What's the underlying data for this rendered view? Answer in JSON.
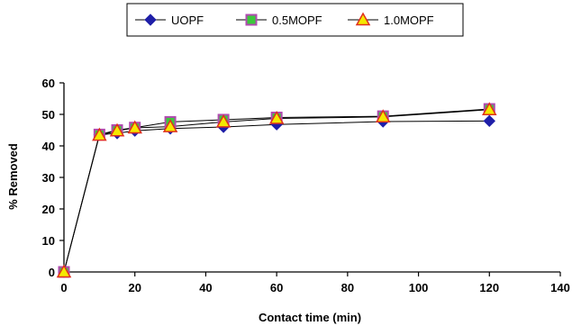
{
  "chart_data": {
    "type": "line",
    "xlabel": "Contact time (min)",
    "ylabel": "% Removed",
    "xlim": [
      0,
      140
    ],
    "ylim": [
      0,
      60
    ],
    "xticks": [
      0,
      20,
      40,
      60,
      80,
      100,
      120,
      140
    ],
    "yticks": [
      0,
      10,
      20,
      30,
      40,
      50,
      60
    ],
    "grid": false,
    "legend_position": "top-center",
    "series": [
      {
        "name": "UOPF",
        "marker": "diamond",
        "color": "#1f1fa8",
        "points": [
          [
            0,
            0
          ],
          [
            10,
            43.5
          ],
          [
            15,
            44
          ],
          [
            20,
            44.8
          ],
          [
            30,
            45.5
          ],
          [
            45,
            46
          ],
          [
            60,
            46.8
          ],
          [
            90,
            47.7
          ],
          [
            120,
            47.9
          ]
        ]
      },
      {
        "name": "0.5MOPF",
        "marker": "square",
        "color": "#3cc83c",
        "stroke": "#b04bb0",
        "points": [
          [
            0,
            0
          ],
          [
            10,
            43.6
          ],
          [
            15,
            45
          ],
          [
            20,
            45.8
          ],
          [
            30,
            47.6
          ],
          [
            45,
            48.3
          ],
          [
            60,
            49
          ],
          [
            90,
            49.4
          ],
          [
            120,
            51.7
          ]
        ]
      },
      {
        "name": "1.0MOPF",
        "marker": "triangle",
        "color": "#f5e800",
        "stroke": "#e0301e",
        "points": [
          [
            0,
            0
          ],
          [
            10,
            43.4
          ],
          [
            15,
            44.8
          ],
          [
            20,
            45.7
          ],
          [
            30,
            46.1
          ],
          [
            45,
            47.6
          ],
          [
            60,
            48.7
          ],
          [
            90,
            49.2
          ],
          [
            120,
            51.5
          ]
        ]
      }
    ]
  }
}
